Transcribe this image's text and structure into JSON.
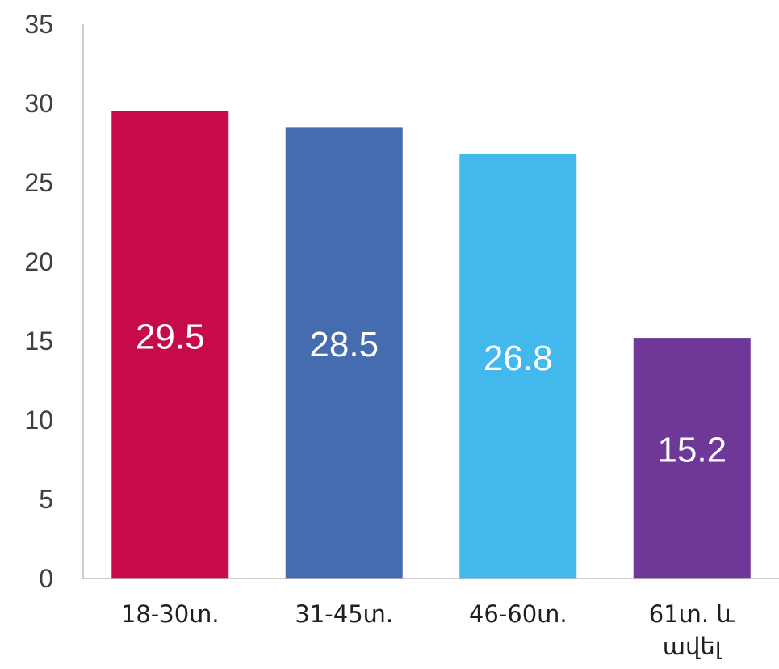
{
  "chart_data": {
    "type": "bar",
    "categories": [
      "18-30տ.",
      "31-45տ.",
      "46-60տ.",
      "61տ. և ավել"
    ],
    "category_label_lines": [
      [
        "18-30տ."
      ],
      [
        "31-45տ."
      ],
      [
        "46-60տ."
      ],
      [
        "61տ. և",
        "ավել"
      ]
    ],
    "values": [
      29.5,
      28.5,
      26.8,
      15.2
    ],
    "data_labels": [
      "29.5",
      "28.5",
      "26.8",
      "15.2"
    ],
    "colors": [
      "#c70b4a",
      "#466cb0",
      "#43b8ec",
      "#6f3898"
    ],
    "title": "",
    "xlabel": "",
    "ylabel": "",
    "ylim": [
      0,
      35
    ],
    "yticks": [
      0,
      5,
      10,
      15,
      20,
      25,
      30,
      35
    ],
    "grid": false,
    "legend": "none"
  }
}
